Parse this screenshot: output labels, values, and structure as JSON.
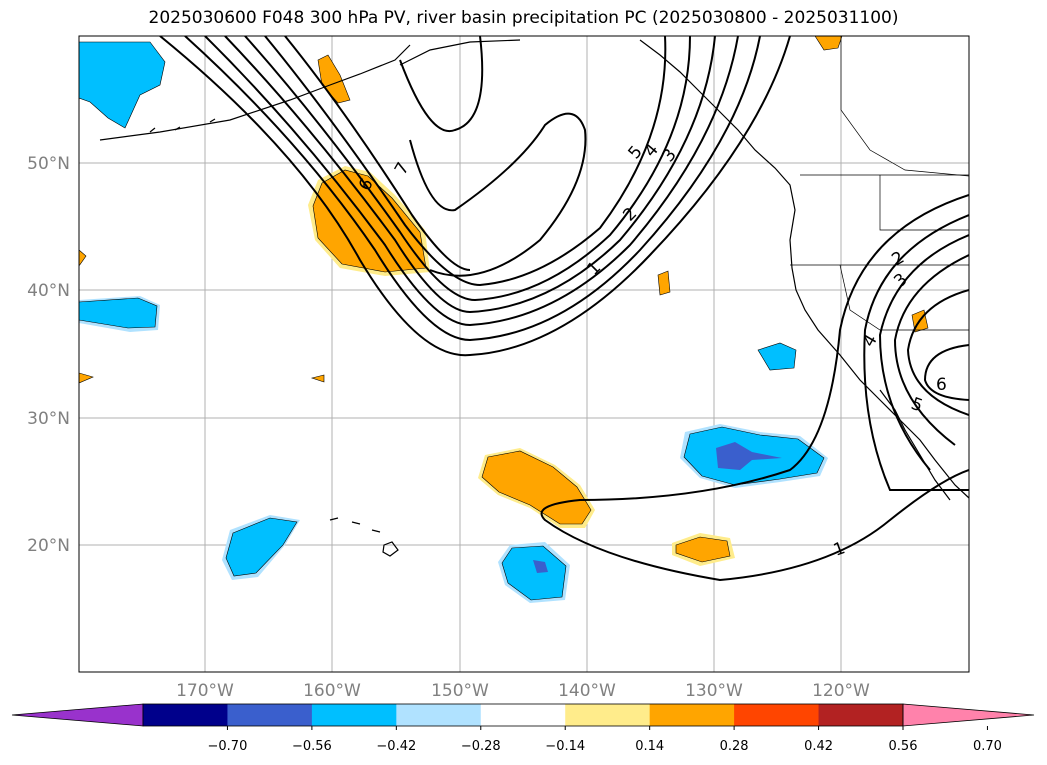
{
  "title": "2025030600 F048 300 hPa PV, river basin precipitation PC (2025030800 - 2025031100)",
  "map": {
    "lat_labels": [
      "50°N",
      "40°N",
      "30°N",
      "20°N"
    ],
    "lon_labels": [
      "170°W",
      "160°W",
      "150°W",
      "140°W",
      "130°W",
      "120°W"
    ],
    "pv_contour_labels": [
      "7",
      "6",
      "5",
      "4",
      "3",
      "2",
      "1",
      "1",
      "2",
      "3",
      "4",
      "5",
      "6"
    ]
  },
  "colorbar": {
    "tick_labels": [
      "−0.70",
      "−0.56",
      "−0.42",
      "−0.28",
      "−0.14",
      "0.14",
      "0.28",
      "0.42",
      "0.56",
      "0.70"
    ],
    "colors": [
      "#9932cc",
      "#00008b",
      "#3a5fcd",
      "#00bfff",
      "#b0e2ff",
      "#ffffff",
      "#ffec8b",
      "#ffa500",
      "#ff4500",
      "#b22222",
      "#ff82ab"
    ]
  }
}
